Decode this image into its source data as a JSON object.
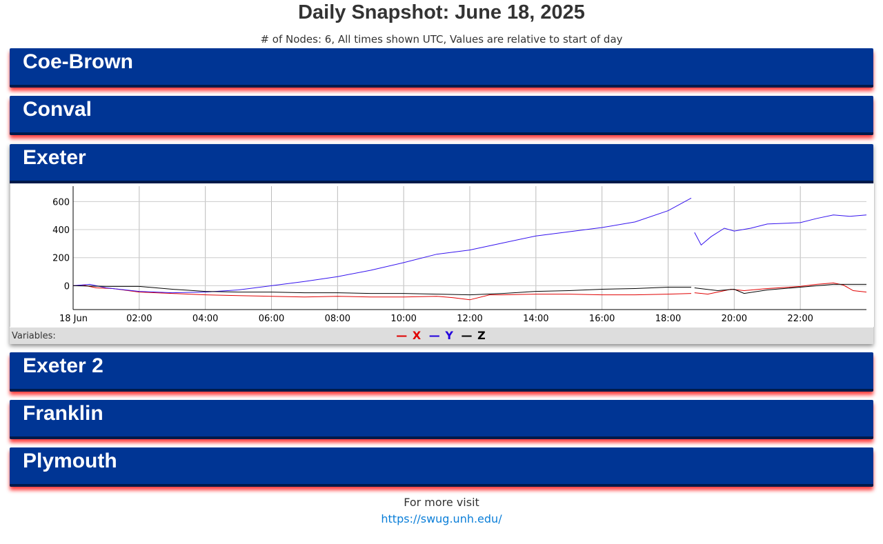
{
  "header": {
    "title": "Daily Snapshot: June 18, 2025",
    "subtitle": "# of Nodes: 6, All times shown UTC, Values are relative to start of day"
  },
  "panels": [
    {
      "name": "Coe-Brown"
    },
    {
      "name": "Conval"
    },
    {
      "name": "Exeter"
    },
    {
      "name": "Exeter 2"
    },
    {
      "name": "Franklin"
    },
    {
      "name": "Plymouth"
    }
  ],
  "legend": {
    "label": "Variables:",
    "items": [
      {
        "dash": "—",
        "name": "X",
        "color": "#e00000"
      },
      {
        "dash": "—",
        "name": "Y",
        "color": "#2200dd"
      },
      {
        "dash": "—",
        "name": "Z",
        "color": "#000000"
      }
    ]
  },
  "footer": {
    "text": "For more visit",
    "link": "https://swug.unh.edu/"
  },
  "chart_data": {
    "type": "line",
    "title": "",
    "xlabel": "",
    "ylabel": "",
    "x_unit": "hours UTC",
    "xlim": [
      0,
      24
    ],
    "ylim": [
      -170,
      710
    ],
    "x_ticks": [
      {
        "v": 0,
        "label": "18 Jun"
      },
      {
        "v": 2,
        "label": "02:00"
      },
      {
        "v": 4,
        "label": "04:00"
      },
      {
        "v": 6,
        "label": "06:00"
      },
      {
        "v": 8,
        "label": "08:00"
      },
      {
        "v": 10,
        "label": "10:00"
      },
      {
        "v": 12,
        "label": "12:00"
      },
      {
        "v": 14,
        "label": "14:00"
      },
      {
        "v": 16,
        "label": "16:00"
      },
      {
        "v": 18,
        "label": "18:00"
      },
      {
        "v": 20,
        "label": "20:00"
      },
      {
        "v": 22,
        "label": "22:00"
      }
    ],
    "y_ticks": [
      {
        "v": 0,
        "label": "0"
      },
      {
        "v": 200,
        "label": "200"
      },
      {
        "v": 400,
        "label": "400"
      },
      {
        "v": 600,
        "label": "600"
      }
    ],
    "grid": true,
    "legend": "bottom-center",
    "series": [
      {
        "name": "X",
        "color": "#e00000",
        "points": [
          [
            0,
            0
          ],
          [
            0.3,
            5
          ],
          [
            0.7,
            -15
          ],
          [
            1.2,
            -20
          ],
          [
            2,
            -45
          ],
          [
            3,
            -55
          ],
          [
            4,
            -65
          ],
          [
            5,
            -70
          ],
          [
            6,
            -75
          ],
          [
            7,
            -80
          ],
          [
            8,
            -75
          ],
          [
            9,
            -80
          ],
          [
            10,
            -80
          ],
          [
            11,
            -75
          ],
          [
            11.5,
            -85
          ],
          [
            12,
            -100
          ],
          [
            12.6,
            -65
          ],
          [
            13,
            -65
          ],
          [
            14,
            -60
          ],
          [
            15,
            -60
          ],
          [
            16,
            -65
          ],
          [
            17,
            -65
          ],
          [
            18,
            -60
          ],
          [
            18.7,
            -55
          ],
          null,
          [
            18.8,
            -50
          ],
          [
            19.2,
            -60
          ],
          [
            19.6,
            -40
          ],
          [
            19.9,
            -25
          ],
          [
            20.3,
            -35
          ],
          [
            21,
            -20
          ],
          [
            22,
            -5
          ],
          [
            22.5,
            10
          ],
          [
            23,
            20
          ],
          [
            23.3,
            5
          ],
          [
            23.6,
            -35
          ],
          [
            24,
            -45
          ]
        ]
      },
      {
        "name": "Y",
        "color": "#3311ee",
        "points": [
          [
            0,
            0
          ],
          [
            0.5,
            10
          ],
          [
            1,
            -15
          ],
          [
            2,
            -40
          ],
          [
            3,
            -50
          ],
          [
            4,
            -45
          ],
          [
            5,
            -30
          ],
          [
            6,
            0
          ],
          [
            7,
            30
          ],
          [
            8,
            65
          ],
          [
            9,
            110
          ],
          [
            10,
            165
          ],
          [
            11,
            225
          ],
          [
            12,
            255
          ],
          [
            13,
            305
          ],
          [
            14,
            355
          ],
          [
            15,
            385
          ],
          [
            16,
            415
          ],
          [
            17,
            455
          ],
          [
            18,
            535
          ],
          [
            18.7,
            625
          ],
          null,
          [
            18.8,
            380
          ],
          [
            19.0,
            290
          ],
          [
            19.3,
            350
          ],
          [
            19.7,
            410
          ],
          [
            20,
            390
          ],
          [
            20.5,
            410
          ],
          [
            21,
            440
          ],
          [
            22,
            450
          ],
          [
            22.5,
            480
          ],
          [
            23,
            505
          ],
          [
            23.5,
            495
          ],
          [
            24,
            505
          ]
        ]
      },
      {
        "name": "Z",
        "color": "#000000",
        "points": [
          [
            0,
            0
          ],
          [
            1,
            -5
          ],
          [
            2,
            -5
          ],
          [
            3,
            -25
          ],
          [
            4,
            -40
          ],
          [
            5,
            -45
          ],
          [
            6,
            -45
          ],
          [
            7,
            -50
          ],
          [
            8,
            -50
          ],
          [
            9,
            -55
          ],
          [
            10,
            -55
          ],
          [
            11,
            -60
          ],
          [
            12,
            -65
          ],
          [
            13,
            -55
          ],
          [
            14,
            -40
          ],
          [
            15,
            -35
          ],
          [
            16,
            -25
          ],
          [
            17,
            -20
          ],
          [
            18,
            -10
          ],
          [
            18.7,
            -10
          ],
          null,
          [
            18.8,
            -15
          ],
          [
            19.5,
            -35
          ],
          [
            20,
            -25
          ],
          [
            20.3,
            -55
          ],
          [
            21,
            -30
          ],
          [
            22,
            -10
          ],
          [
            23,
            10
          ],
          [
            24,
            10
          ]
        ]
      }
    ]
  }
}
